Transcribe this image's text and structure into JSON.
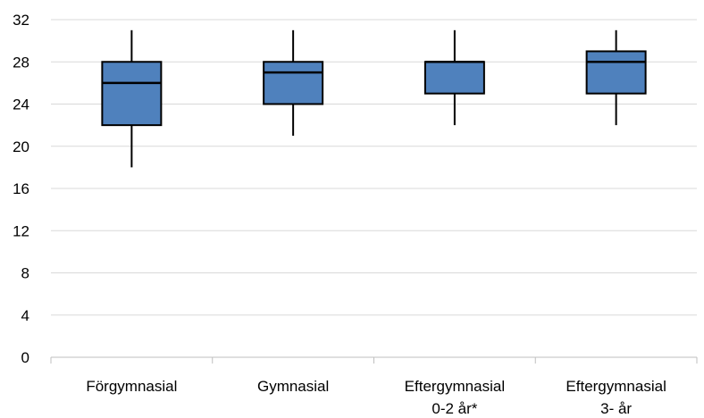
{
  "chart_data": {
    "type": "box",
    "title": "",
    "xlabel": "",
    "ylabel": "",
    "ylim": [
      0,
      32
    ],
    "y_ticks": [
      0,
      4,
      8,
      12,
      16,
      20,
      24,
      28,
      32
    ],
    "grid": true,
    "legend": "none",
    "categories": [
      [
        "Förgymnasial"
      ],
      [
        "Gymnasial"
      ],
      [
        "Eftergymnasial",
        "0-2 år*"
      ],
      [
        "Eftergymnasial",
        "3- år"
      ]
    ],
    "boxes": [
      {
        "min": 18,
        "q1": 22,
        "median": 26,
        "q3": 28,
        "max": 31
      },
      {
        "min": 21,
        "q1": 24,
        "median": 27,
        "q3": 28,
        "max": 31
      },
      {
        "min": 22,
        "q1": 25,
        "median": 28,
        "q3": 28,
        "max": 31
      },
      {
        "min": 22,
        "q1": 25,
        "median": 28,
        "q3": 29,
        "max": 31
      }
    ],
    "colors": {
      "box_fill": "#4f81bd",
      "box_stroke": "#000000",
      "grid": "#d9d9d9",
      "axis": "#bfbfbf"
    }
  }
}
